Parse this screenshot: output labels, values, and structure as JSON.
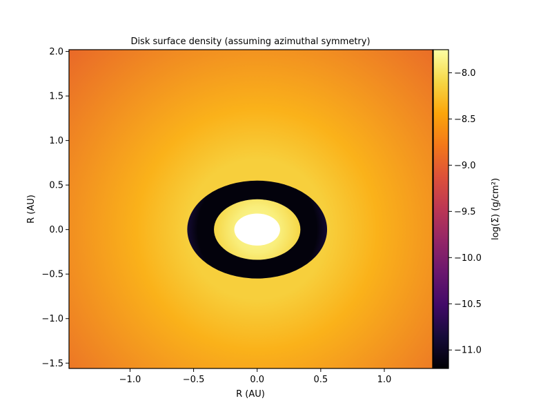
{
  "chart_data": {
    "type": "heatmap",
    "title": "Disk surface density (assuming azimuthal symmetry)",
    "xlabel": "R (AU)",
    "ylabel": "R (AU)",
    "xlim": [
      -1.48,
      1.38
    ],
    "ylim": [
      -1.56,
      2.02
    ],
    "x_ticks": [
      -1.0,
      -0.5,
      0.0,
      0.5,
      1.0
    ],
    "x_tick_labels": [
      "−1.0",
      "−0.5",
      "0.0",
      "0.5",
      "1.0"
    ],
    "y_ticks": [
      -1.5,
      -1.0,
      -0.5,
      0.0,
      0.5,
      1.0,
      1.5,
      2.0
    ],
    "y_tick_labels": [
      "−1.5",
      "−1.0",
      "−0.5",
      "0.0",
      "0.5",
      "1.0",
      "1.5",
      "2.0"
    ],
    "colorbar": {
      "label": "log(Σ) (g/cm²)",
      "colormap": "inferno",
      "vmin": -11.2,
      "vmax": -7.75,
      "ticks": [
        -11.0,
        -10.5,
        -10.0,
        -9.5,
        -9.0,
        -8.5,
        -8.0
      ],
      "tick_labels": [
        "−11.0",
        "−10.5",
        "−10.0",
        "−9.5",
        "−9.0",
        "−8.5",
        "−8.0"
      ]
    },
    "regions": [
      {
        "r_min": 0.0,
        "r_max": 0.18,
        "log_sigma": -7.75
      },
      {
        "r_min": 0.18,
        "r_max": 0.34,
        "log_sigma_inner": -7.9,
        "log_sigma_outer": -8.1
      },
      {
        "r_min": 0.34,
        "r_max": 0.55,
        "log_sigma": -11.15
      },
      {
        "r_min": 0.55,
        "r_max": 2.1,
        "log_sigma_inner": -8.25,
        "log_sigma_outer": -8.95
      }
    ],
    "grid": false,
    "colors": {
      "inner_core": "#fcffa4",
      "inner_ring": "#f3f58a",
      "gap": "#0a0716",
      "disk_inner": "#fba40a",
      "disk_outer": "#ee6a25",
      "frame": "#000000"
    }
  }
}
